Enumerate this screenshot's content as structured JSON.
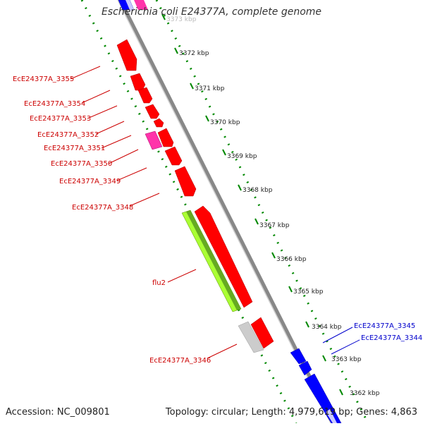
{
  "title": "Escherichia coli E24377A, complete genome",
  "footer": {
    "accession": "Accession: NC_009801",
    "topology": "Topology: circular; Length: 4,979,619 bp; Genes: 4,863"
  },
  "colors": {
    "forward_gene": "#ff0000",
    "reverse_gene": "#0000ff",
    "pseudo_gene": "#ff33aa",
    "rna_gene": "#aaff33",
    "grey_gene": "#cccccc",
    "backbone": "#888888",
    "tick": "#008800",
    "label_red": "#cc0000",
    "label_blue": "#0000cc"
  },
  "scale_ticks": [
    {
      "label": "3373 kbp",
      "text": "3373 kbp"
    },
    {
      "label": "3372 kbp",
      "text": "3372 kbp"
    },
    {
      "label": "3371 kbp",
      "text": "3371 kbp"
    },
    {
      "label": "3370 kbp",
      "text": "3370 kbp"
    },
    {
      "label": "3369 kbp",
      "text": "3369 kbp"
    },
    {
      "label": "3368 kbp",
      "text": "3368 kbp"
    },
    {
      "label": "3367 kbp",
      "text": "3367 kbp"
    },
    {
      "label": "3366 kbp",
      "text": "3366 kbp"
    },
    {
      "label": "3365 kbp",
      "text": "3365 kbp"
    },
    {
      "label": "3364 kbp",
      "text": "3364 kbp"
    },
    {
      "label": "3363 kbp",
      "text": "3363 kbp"
    },
    {
      "label": "3362 kbp",
      "text": "3362 kbp"
    }
  ],
  "gene_labels": [
    {
      "text": "EcE24377A_3355",
      "strand": "forward"
    },
    {
      "text": "EcE24377A_3354",
      "strand": "forward"
    },
    {
      "text": "EcE24377A_3353",
      "strand": "forward"
    },
    {
      "text": "EcE24377A_3352",
      "strand": "forward"
    },
    {
      "text": "EcE24377A_3351",
      "strand": "forward"
    },
    {
      "text": "EcE24377A_3350",
      "strand": "forward"
    },
    {
      "text": "EcE24377A_3349",
      "strand": "forward"
    },
    {
      "text": "EcE24377A_3348",
      "strand": "forward"
    },
    {
      "text": "flu2",
      "strand": "forward"
    },
    {
      "text": "EcE24377A_3346",
      "strand": "forward"
    },
    {
      "text": "EcE24377A_3345",
      "strand": "reverse"
    },
    {
      "text": "EcE24377A_3344",
      "strand": "reverse"
    }
  ]
}
